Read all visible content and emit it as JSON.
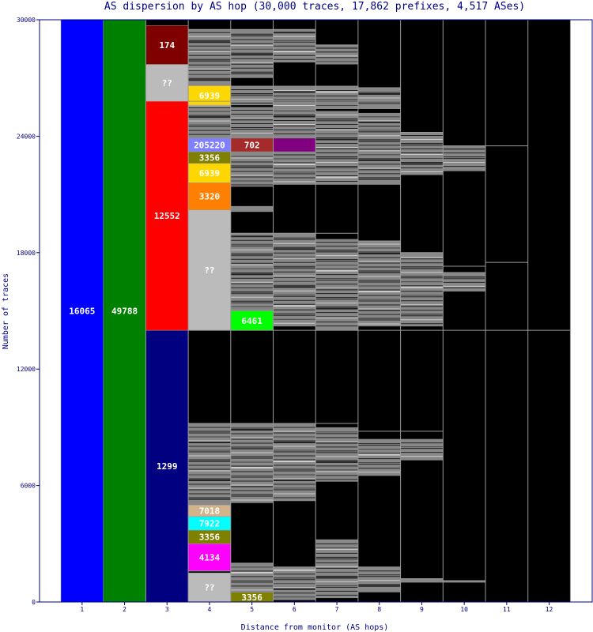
{
  "chart_data": {
    "type": "bar",
    "stacked": true,
    "title": "AS dispersion by AS hop (30,000 traces, 17,862 prefixes, 4,517 ASes)",
    "xlabel": "Distance from monitor (AS hops)",
    "ylabel": "Number of traces",
    "ylim": [
      0,
      30000
    ],
    "y_ticks": [
      0,
      6000,
      12000,
      18000,
      24000,
      30000
    ],
    "categories": [
      "1",
      "2",
      "3",
      "4",
      "5",
      "6",
      "7",
      "8",
      "9",
      "10",
      "11",
      "12"
    ],
    "colors": {
      "no_path": "#000000",
      "other_as": "#888888",
      "grid_line": "#999999",
      "axis": "#000080"
    },
    "labeled_segments": [
      {
        "hop": 1,
        "label": "16065",
        "start": 0,
        "end": 30000,
        "color": "#0000ff"
      },
      {
        "hop": 2,
        "label": "49788",
        "start": 0,
        "end": 30000,
        "color": "#008000"
      },
      {
        "hop": 3,
        "label": "1299",
        "start": 0,
        "end": 14000,
        "color": "#000080"
      },
      {
        "hop": 3,
        "label": "12552",
        "start": 14000,
        "end": 25800,
        "color": "#ff0000"
      },
      {
        "hop": 3,
        "label": "??",
        "start": 25800,
        "end": 27700,
        "color": "#bbbbbb"
      },
      {
        "hop": 3,
        "label": "174",
        "start": 27700,
        "end": 29700,
        "color": "#800000"
      },
      {
        "hop": 4,
        "label": "??",
        "start": 0,
        "end": 1500,
        "color": "#bbbbbb"
      },
      {
        "hop": 4,
        "label": "4134",
        "start": 1600,
        "end": 3000,
        "color": "#ff00ff"
      },
      {
        "hop": 4,
        "label": "3356",
        "start": 3000,
        "end": 3700,
        "color": "#808000"
      },
      {
        "hop": 4,
        "label": "7922",
        "start": 3700,
        "end": 4400,
        "color": "#00ffff"
      },
      {
        "hop": 4,
        "label": "7018",
        "start": 4400,
        "end": 5000,
        "color": "#d2b48c"
      },
      {
        "hop": 4,
        "label": "??",
        "start": 14000,
        "end": 20200,
        "color": "#bbbbbb"
      },
      {
        "hop": 4,
        "label": "3320",
        "start": 20200,
        "end": 21600,
        "color": "#ff8000"
      },
      {
        "hop": 4,
        "label": "6939",
        "start": 21600,
        "end": 22600,
        "color": "#ffd700"
      },
      {
        "hop": 4,
        "label": "3356",
        "start": 22600,
        "end": 23200,
        "color": "#808000"
      },
      {
        "hop": 4,
        "label": "205220",
        "start": 23200,
        "end": 23900,
        "color": "#8080ff"
      },
      {
        "hop": 4,
        "label": "6939",
        "start": 25600,
        "end": 26600,
        "color": "#ffd700"
      },
      {
        "hop": 5,
        "label": "3356",
        "start": 0,
        "end": 500,
        "color": "#808000"
      },
      {
        "hop": 5,
        "label": "6461",
        "start": 14000,
        "end": 15000,
        "color": "#00ff00"
      },
      {
        "hop": 5,
        "label": "702",
        "start": 23200,
        "end": 23900,
        "color": "#a52a2a"
      },
      {
        "hop": 6,
        "label": "",
        "start": 23200,
        "end": 23900,
        "color": "#800080"
      }
    ],
    "gray_regions": [
      {
        "hop": 4,
        "start": 5000,
        "end": 9200
      },
      {
        "hop": 4,
        "start": 23900,
        "end": 25800
      },
      {
        "hop": 4,
        "start": 26600,
        "end": 29500
      },
      {
        "hop": 5,
        "start": 500,
        "end": 2000
      },
      {
        "hop": 5,
        "start": 5100,
        "end": 9200
      },
      {
        "hop": 5,
        "start": 15000,
        "end": 19000
      },
      {
        "hop": 5,
        "start": 20100,
        "end": 20400
      },
      {
        "hop": 5,
        "start": 21400,
        "end": 23200
      },
      {
        "hop": 5,
        "start": 23900,
        "end": 25500
      },
      {
        "hop": 5,
        "start": 25600,
        "end": 26600
      },
      {
        "hop": 5,
        "start": 27000,
        "end": 29500
      },
      {
        "hop": 6,
        "start": 100,
        "end": 1800
      },
      {
        "hop": 6,
        "start": 5200,
        "end": 9200
      },
      {
        "hop": 6,
        "start": 14200,
        "end": 19000
      },
      {
        "hop": 6,
        "start": 21500,
        "end": 23200
      },
      {
        "hop": 6,
        "start": 23900,
        "end": 25500
      },
      {
        "hop": 6,
        "start": 25400,
        "end": 26600
      },
      {
        "hop": 6,
        "start": 27800,
        "end": 29500
      },
      {
        "hop": 7,
        "start": 200,
        "end": 3200
      },
      {
        "hop": 7,
        "start": 6200,
        "end": 9000
      },
      {
        "hop": 7,
        "start": 14000,
        "end": 18700
      },
      {
        "hop": 7,
        "start": 21500,
        "end": 25300
      },
      {
        "hop": 7,
        "start": 25400,
        "end": 26600
      },
      {
        "hop": 7,
        "start": 27700,
        "end": 28700
      },
      {
        "hop": 8,
        "start": 500,
        "end": 1800
      },
      {
        "hop": 8,
        "start": 6500,
        "end": 8400
      },
      {
        "hop": 8,
        "start": 14200,
        "end": 18600
      },
      {
        "hop": 8,
        "start": 21500,
        "end": 25200
      },
      {
        "hop": 8,
        "start": 25400,
        "end": 26500
      },
      {
        "hop": 9,
        "start": 1000,
        "end": 1200
      },
      {
        "hop": 9,
        "start": 7300,
        "end": 8400
      },
      {
        "hop": 9,
        "start": 14200,
        "end": 18000
      },
      {
        "hop": 9,
        "start": 22000,
        "end": 24200
      },
      {
        "hop": 10,
        "start": 1000,
        "end": 1100
      },
      {
        "hop": 10,
        "start": 16000,
        "end": 17000
      },
      {
        "hop": 10,
        "start": 22200,
        "end": 23500
      }
    ],
    "boundaries": [
      {
        "hop": 4,
        "values": [
          1600,
          9200,
          14000,
          25800,
          29500
        ]
      },
      {
        "hop": 5,
        "values": [
          2000,
          9200,
          14000,
          19000,
          25800,
          29500
        ]
      },
      {
        "hop": 6,
        "values": [
          1800,
          9200,
          14000,
          19000,
          25800,
          29500
        ]
      },
      {
        "hop": 7,
        "values": [
          3200,
          9200,
          14000,
          19000,
          25800,
          28700
        ]
      },
      {
        "hop": 8,
        "values": [
          1800,
          8800,
          14000,
          18600,
          25800,
          26500
        ]
      },
      {
        "hop": 9,
        "values": [
          1200,
          8800,
          14000,
          18000,
          24200
        ]
      },
      {
        "hop": 10,
        "values": [
          1100,
          14000,
          17300,
          23500
        ]
      },
      {
        "hop": 11,
        "values": [
          14000,
          17500,
          23500
        ]
      },
      {
        "hop": 12,
        "values": [
          14000
        ]
      }
    ]
  }
}
